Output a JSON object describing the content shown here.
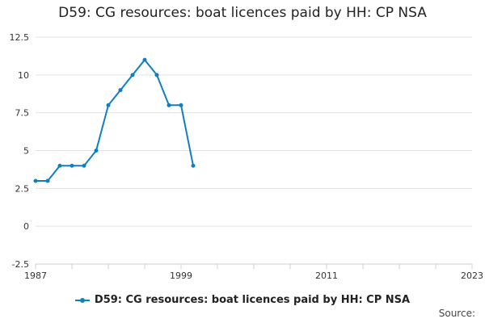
{
  "chart_data": {
    "type": "line",
    "title": "D59: CG resources: boat licences paid by HH: CP NSA",
    "x": [
      1987,
      1988,
      1989,
      1990,
      1991,
      1992,
      1993,
      1994,
      1995,
      1996,
      1997,
      1998,
      1999,
      2000
    ],
    "series": [
      {
        "name": "D59: CG resources: boat licences paid by HH: CP NSA",
        "values": [
          3,
          3,
          4,
          4,
          4,
          5,
          8,
          9,
          10,
          11,
          10,
          8,
          8,
          4
        ]
      }
    ],
    "ylim": [
      -2.5,
      12.5
    ],
    "y_ticks": [
      "-2.5",
      "0",
      "2.5",
      "5",
      "7.5",
      "10",
      "12.5"
    ],
    "xlim": [
      1987,
      2023
    ],
    "x_ticks": [
      "1987",
      "1999",
      "2011",
      "2023"
    ],
    "grid": true,
    "legend_position": "bottom",
    "color": "#0e7fc2"
  },
  "source_label": "Source:"
}
